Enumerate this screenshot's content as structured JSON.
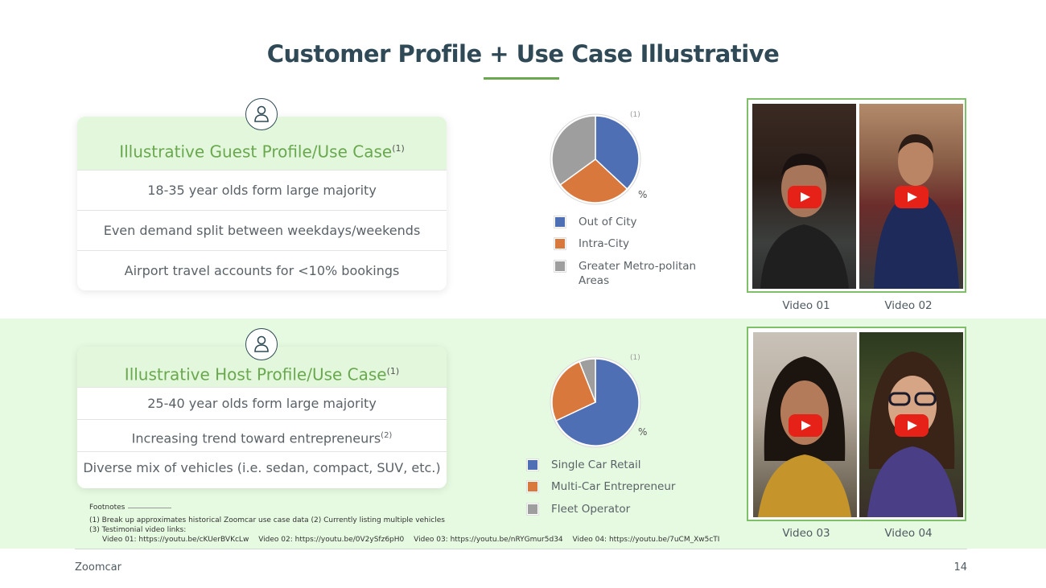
{
  "title": "Customer Profile + Use Case Illustrative",
  "guest": {
    "heading": "Illustrative Guest Profile/Use Case",
    "heading_note": "(1)",
    "rows": [
      "18-35 year olds form large majority",
      "Even demand split between weekdays/weekends",
      "Airport travel accounts for <10% bookings"
    ]
  },
  "host": {
    "heading": "Illustrative Host Profile/Use Case",
    "heading_note": "(1)",
    "rows": [
      "25-40 year olds form large majority",
      "Increasing trend toward entrepreneurs",
      "Diverse mix of vehicles (i.e. sedan, compact, SUV, etc.)"
    ],
    "row2_note": "(2)"
  },
  "pie_note": "(1)",
  "pct_label": "%",
  "colors": {
    "blue": "#4e6fb4",
    "orange": "#d9783d",
    "gray": "#9e9e9e",
    "green": "#6aa84f",
    "navy": "#2f4a56"
  },
  "chart_data": [
    {
      "type": "pie",
      "labels": [
        "Out of City",
        "Intra-City",
        "Greater Metro-politan Areas"
      ],
      "values": [
        37,
        28,
        35
      ],
      "colors": [
        "#4e6fb4",
        "#d9783d",
        "#9e9e9e"
      ],
      "unit": "%"
    },
    {
      "type": "pie",
      "labels": [
        "Single Car Retail",
        "Multi-Car Entrepreneur",
        "Fleet Operator"
      ],
      "values": [
        68,
        26,
        6
      ],
      "colors": [
        "#4e6fb4",
        "#d9783d",
        "#9e9e9e"
      ],
      "unit": "%"
    }
  ],
  "legend1": [
    "Out of City",
    "Intra-City",
    "Greater Metro-politan",
    "Areas"
  ],
  "legend2": [
    "Single Car Retail",
    "Multi-Car Entrepreneur",
    "Fleet Operator"
  ],
  "videos": [
    "Video 01",
    "Video 02",
    "Video 03",
    "Video 04"
  ],
  "footnotes": {
    "heading": "Footnotes",
    "line1": "(1) Break up approximates historical Zoomcar use case data   (2) Currently listing multiple vehicles",
    "line2": "(3) Testimonial video links:",
    "links": [
      "Video 01: https://youtu.be/cKUerBVKcLw",
      "Video 02: https://youtu.be/0V2ySfz6pH0",
      "Video 03: https://youtu.be/nRYGmur5d34",
      "Video 04: https://youtu.be/7uCM_Xw5cTI"
    ]
  },
  "footer": {
    "brand": "Zoomcar",
    "page": "14"
  }
}
